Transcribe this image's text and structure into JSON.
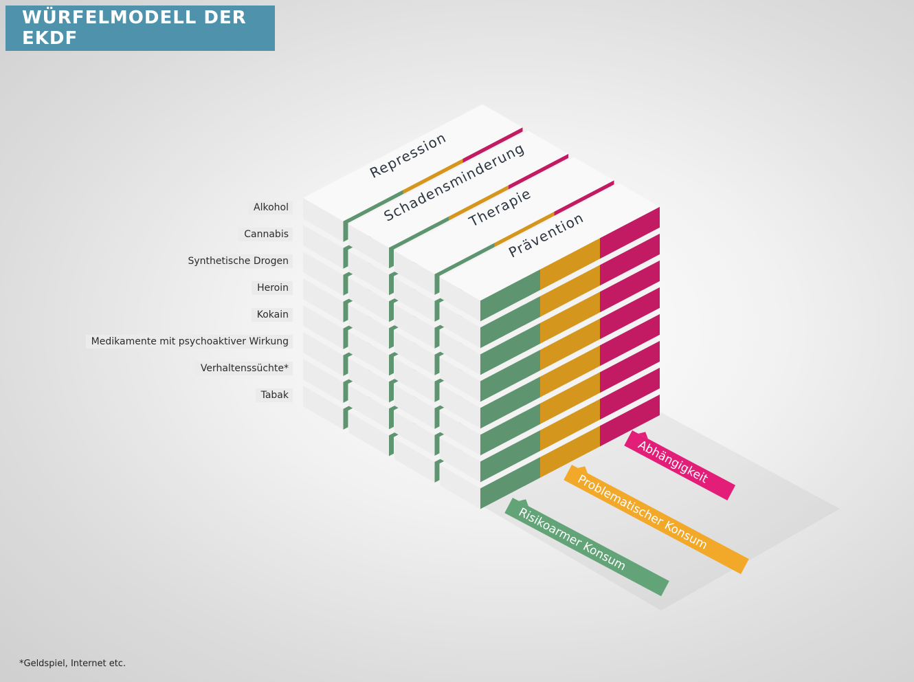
{
  "title": "WÜRFELMODELL DER EKDF",
  "pillars": [
    "Repression",
    "Schadensminderung",
    "Therapie",
    "Prävention"
  ],
  "substances": [
    "Alkohol",
    "Cannabis",
    "Synthetische Drogen",
    "Heroin",
    "Kokain",
    "Medikamente mit psychoaktiver Wirkung",
    "Verhaltenssüchte*",
    "Tabak"
  ],
  "consumption": [
    "Risikoarmer Konsum",
    "Problematischer Konsum",
    "Abhängigkeit"
  ],
  "footnote": "*Geldspiel, Internet etc.",
  "colors": {
    "title_bar": "#4e93ab",
    "risikoarm": "#5e9470",
    "problematisch": "#d4961c",
    "abhaengigkeit": "#c21a63",
    "tag_risikoarm": "#62a378",
    "tag_problematisch": "#f2a92a",
    "tag_abhaengigkeit": "#e31e78"
  }
}
